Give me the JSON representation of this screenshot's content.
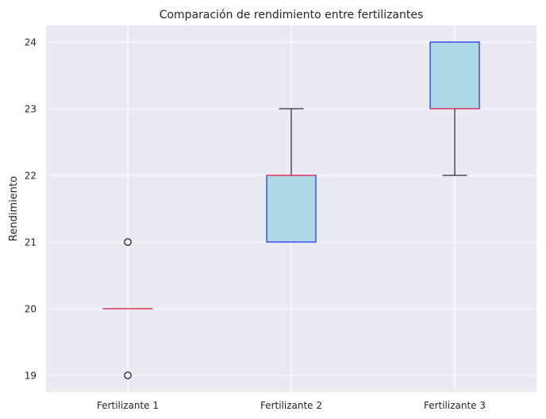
{
  "chart_data": {
    "type": "box",
    "title": "Comparación de rendimiento entre fertilizantes",
    "xlabel": "",
    "ylabel": "Rendimiento",
    "ylim": [
      18.75,
      24.25
    ],
    "yticks": [
      19,
      20,
      21,
      22,
      23,
      24
    ],
    "grid": true,
    "categories": [
      "Fertilizante 1",
      "Fertilizante 2",
      "Fertilizante 3"
    ],
    "boxes": [
      {
        "q1": 20,
        "median": 20,
        "q3": 20,
        "whisker_low": 20,
        "whisker_high": 20,
        "outliers": [
          19,
          21
        ]
      },
      {
        "q1": 21,
        "median": 22,
        "q3": 22,
        "whisker_low": 21,
        "whisker_high": 23,
        "outliers": []
      },
      {
        "q1": 23,
        "median": 23,
        "q3": 24,
        "whisker_low": 22,
        "whisker_high": 24,
        "outliers": []
      }
    ],
    "colors": {
      "plot_background": "#eaeaf2",
      "grid": "#ffffff",
      "box_fill": "#add8e6",
      "box_edge": "#0000ff",
      "median": "#dc143c",
      "whisker": "#000000"
    }
  }
}
